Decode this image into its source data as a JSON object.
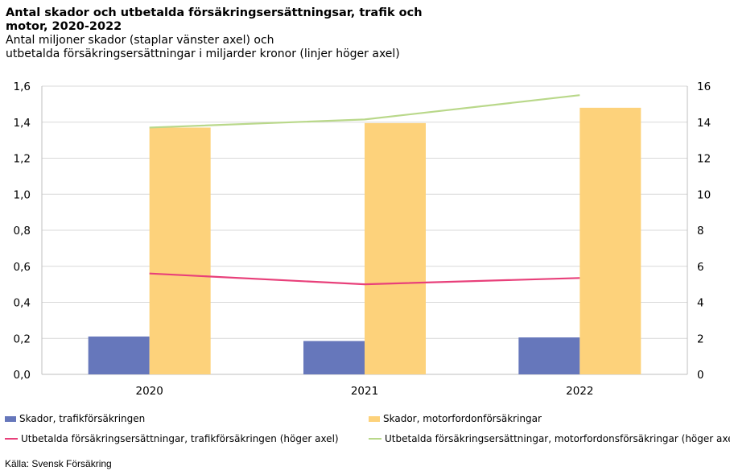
{
  "title": "Antal skador och utbetalda försäkringsersättningsar, trafik och motor, 2020-2022",
  "subtitle_lines": [
    "Antal miljoner skador (staplar vänster axel) och",
    "utbetalda försäkringsersättningar i miljarder kronor (linjer höger axel)"
  ],
  "source": "Källa: Svensk Försäkring",
  "colors": {
    "bar_traffic": "#6677bb",
    "bar_motor": "#fdd27b",
    "line_traffic": "#e8407a",
    "line_motor": "#b9d88a",
    "grid": "#d9d9d9",
    "axis": "#bfbfbf"
  },
  "chart_data": {
    "type": "bar",
    "categories": [
      "2020",
      "2021",
      "2022"
    ],
    "left_axis": {
      "ylim": [
        0,
        1.6
      ],
      "ticks": [
        0,
        0.2,
        0.4,
        0.6,
        0.8,
        1.0,
        1.2,
        1.4,
        1.6
      ],
      "tick_labels": [
        "0,0",
        "0,2",
        "0,4",
        "0,6",
        "0,8",
        "1,0",
        "1,2",
        "1,4",
        "1,6"
      ]
    },
    "right_axis": {
      "ylim": [
        0,
        16
      ],
      "ticks": [
        0,
        2,
        4,
        6,
        8,
        10,
        12,
        14,
        16
      ],
      "tick_labels": [
        "0",
        "2",
        "4",
        "6",
        "8",
        "10",
        "12",
        "14",
        "16"
      ]
    },
    "grid": true,
    "legend_position": "bottom",
    "series": [
      {
        "name": "Skador, trafikförsäkringen",
        "kind": "bar",
        "axis": "left",
        "color": "#6677bb",
        "values": [
          0.21,
          0.185,
          0.205
        ]
      },
      {
        "name": "Skador, motorfordonförsäkringar",
        "kind": "bar",
        "axis": "left",
        "color": "#fdd27b",
        "values": [
          1.37,
          1.395,
          1.48
        ]
      },
      {
        "name": "Utbetalda försäkringsersättningar, trafikförsäkringen  (höger axel)",
        "kind": "line",
        "axis": "right",
        "color": "#e8407a",
        "values": [
          5.6,
          5.0,
          5.35
        ]
      },
      {
        "name": "Utbetalda försäkringsersättningar, motorfordonsförsäkringar (höger axel)",
        "kind": "line",
        "axis": "right",
        "color": "#b9d88a",
        "values": [
          13.7,
          14.15,
          15.5
        ]
      }
    ]
  }
}
